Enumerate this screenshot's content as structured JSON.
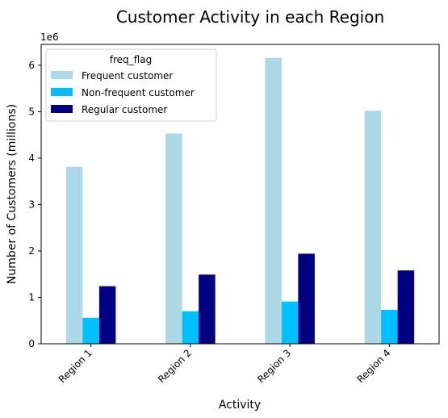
{
  "chart_data": {
    "type": "bar",
    "title": "Customer Activity in each Region",
    "xlabel": "Activity",
    "ylabel": "Number of Customers (millions)",
    "y_offset_label": "1e6",
    "categories": [
      "Region 1",
      "Region 2",
      "Region 3",
      "Region 4"
    ],
    "yticks": [
      "0",
      "1",
      "2",
      "3",
      "4",
      "5",
      "6"
    ],
    "ylim": [
      0,
      6.45
    ],
    "legend_title": "freq_flag",
    "legend_position": "top-left",
    "grid": false,
    "series": [
      {
        "name": "Frequent customer",
        "color": "#add8e6",
        "values": [
          3.81,
          4.53,
          6.16,
          5.02
        ]
      },
      {
        "name": "Non-frequent customer",
        "color": "#00bfff",
        "values": [
          0.56,
          0.7,
          0.91,
          0.73
        ]
      },
      {
        "name": "Regular customer",
        "color": "#000080",
        "values": [
          1.24,
          1.49,
          1.94,
          1.58
        ]
      }
    ]
  }
}
